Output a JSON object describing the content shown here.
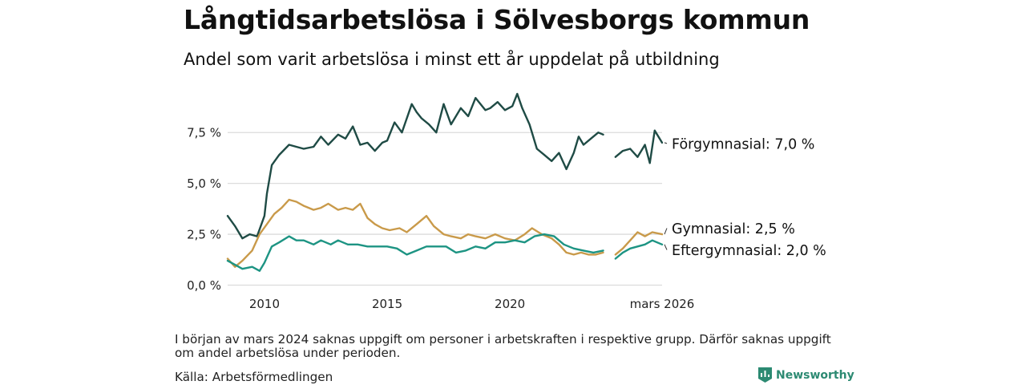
{
  "title": "Långtidsarbetslösa i Sölvesborgs kommun",
  "subtitle": "Andel som varit arbetslösa i minst ett år uppdelat på utbildning",
  "note": "I början av mars 2024 saknas uppgift om personer i arbetskraften i respektive grupp. Därför saknas uppgift om andel arbetslösa under perioden.",
  "source": "Källa: Arbetsförmedlingen",
  "brand": "Newsworthy",
  "colors": {
    "forgymnasial": "#1f4b45",
    "gymnasial": "#c99a4a",
    "eftergymnasial": "#1d9483",
    "grid": "#dcdcdc"
  },
  "chart_data": {
    "type": "line",
    "title": "Långtidsarbetslösa i Sölvesborgs kommun",
    "x_unit": "year",
    "xlim": [
      2008.5,
      2026.2
    ],
    "ylim": [
      0,
      9.5
    ],
    "y_ticks": [
      {
        "value": 0,
        "label": "0,0 %"
      },
      {
        "value": 2.5,
        "label": "2,5 %"
      },
      {
        "value": 5,
        "label": "5,0 %"
      },
      {
        "value": 7.5,
        "label": "7,5 %"
      }
    ],
    "x_ticks": [
      {
        "value": 2010,
        "label": "2010"
      },
      {
        "value": 2015,
        "label": "2015"
      },
      {
        "value": 2020,
        "label": "2020"
      },
      {
        "value": 2026.2,
        "label": "mars 2026"
      }
    ],
    "gap": [
      2024.0,
      2024.3
    ],
    "series": [
      {
        "name": "Förgymnasial",
        "end_label": "Förgymnasial: 7,0 %",
        "x": [
          2008.5,
          2008.8,
          2009.1,
          2009.4,
          2009.7,
          2010.0,
          2010.1,
          2010.3,
          2010.6,
          2011.0,
          2011.3,
          2011.6,
          2012.0,
          2012.3,
          2012.6,
          2013.0,
          2013.3,
          2013.6,
          2013.9,
          2014.2,
          2014.5,
          2014.8,
          2015.0,
          2015.3,
          2015.6,
          2016.0,
          2016.2,
          2016.4,
          2016.7,
          2017.0,
          2017.3,
          2017.6,
          2018.0,
          2018.3,
          2018.6,
          2019.0,
          2019.2,
          2019.5,
          2019.8,
          2020.1,
          2020.3,
          2020.5,
          2020.8,
          2021.1,
          2021.4,
          2021.7,
          2022.0,
          2022.3,
          2022.6,
          2022.8,
          2023.0,
          2023.3,
          2023.6,
          2023.8,
          2024.3,
          2024.6,
          2024.9,
          2025.2,
          2025.5,
          2025.7,
          2025.9,
          2026.2
        ],
        "y": [
          3.4,
          2.9,
          2.3,
          2.5,
          2.4,
          3.4,
          4.5,
          5.9,
          6.4,
          6.9,
          6.8,
          6.7,
          6.8,
          7.3,
          6.9,
          7.4,
          7.2,
          7.8,
          6.9,
          7.0,
          6.6,
          7.0,
          7.1,
          8.0,
          7.5,
          8.9,
          8.5,
          8.2,
          7.9,
          7.5,
          8.9,
          7.9,
          8.7,
          8.3,
          9.2,
          8.6,
          8.7,
          9.0,
          8.6,
          8.8,
          9.4,
          8.7,
          7.9,
          6.7,
          6.4,
          6.1,
          6.5,
          5.7,
          6.5,
          7.3,
          6.9,
          7.2,
          7.5,
          7.4,
          6.3,
          6.6,
          6.7,
          6.3,
          6.9,
          6.0,
          7.6,
          7.0
        ]
      },
      {
        "name": "Gymnasial",
        "end_label": "Gymnasial: 2,5 %",
        "x": [
          2008.5,
          2008.8,
          2009.1,
          2009.5,
          2009.8,
          2010.1,
          2010.4,
          2010.7,
          2011.0,
          2011.3,
          2011.6,
          2012.0,
          2012.3,
          2012.6,
          2013.0,
          2013.3,
          2013.6,
          2013.9,
          2014.2,
          2014.5,
          2014.8,
          2015.1,
          2015.5,
          2015.8,
          2016.2,
          2016.6,
          2016.9,
          2017.3,
          2017.6,
          2018.0,
          2018.3,
          2018.6,
          2019.0,
          2019.4,
          2019.8,
          2020.2,
          2020.6,
          2020.9,
          2021.3,
          2021.7,
          2022.0,
          2022.3,
          2022.6,
          2022.9,
          2023.2,
          2023.5,
          2023.8,
          2024.3,
          2024.6,
          2024.9,
          2025.2,
          2025.5,
          2025.8,
          2026.2
        ],
        "y": [
          1.3,
          0.9,
          1.2,
          1.7,
          2.5,
          3.0,
          3.5,
          3.8,
          4.2,
          4.1,
          3.9,
          3.7,
          3.8,
          4.0,
          3.7,
          3.8,
          3.7,
          4.0,
          3.3,
          3.0,
          2.8,
          2.7,
          2.8,
          2.6,
          3.0,
          3.4,
          2.9,
          2.5,
          2.4,
          2.3,
          2.5,
          2.4,
          2.3,
          2.5,
          2.3,
          2.2,
          2.5,
          2.8,
          2.5,
          2.3,
          2.0,
          1.6,
          1.5,
          1.6,
          1.5,
          1.5,
          1.6,
          1.5,
          1.8,
          2.2,
          2.6,
          2.4,
          2.6,
          2.5
        ]
      },
      {
        "name": "Eftergymnasial",
        "end_label": "Eftergymnasial: 2,0 %",
        "x": [
          2008.5,
          2008.8,
          2009.1,
          2009.5,
          2009.8,
          2010.0,
          2010.3,
          2010.6,
          2011.0,
          2011.3,
          2011.6,
          2012.0,
          2012.3,
          2012.7,
          2013.0,
          2013.4,
          2013.8,
          2014.2,
          2014.6,
          2015.0,
          2015.4,
          2015.8,
          2016.2,
          2016.6,
          2017.0,
          2017.4,
          2017.8,
          2018.2,
          2018.6,
          2019.0,
          2019.4,
          2019.8,
          2020.2,
          2020.6,
          2021.0,
          2021.4,
          2021.8,
          2022.2,
          2022.6,
          2023.0,
          2023.4,
          2023.8,
          2024.3,
          2024.6,
          2024.9,
          2025.2,
          2025.5,
          2025.8,
          2026.2
        ],
        "y": [
          1.2,
          1.0,
          0.8,
          0.9,
          0.7,
          1.1,
          1.9,
          2.1,
          2.4,
          2.2,
          2.2,
          2.0,
          2.2,
          2.0,
          2.2,
          2.0,
          2.0,
          1.9,
          1.9,
          1.9,
          1.8,
          1.5,
          1.7,
          1.9,
          1.9,
          1.9,
          1.6,
          1.7,
          1.9,
          1.8,
          2.1,
          2.1,
          2.2,
          2.1,
          2.4,
          2.5,
          2.4,
          2.0,
          1.8,
          1.7,
          1.6,
          1.7,
          1.3,
          1.6,
          1.8,
          1.9,
          2.0,
          2.2,
          2.0
        ]
      }
    ]
  }
}
